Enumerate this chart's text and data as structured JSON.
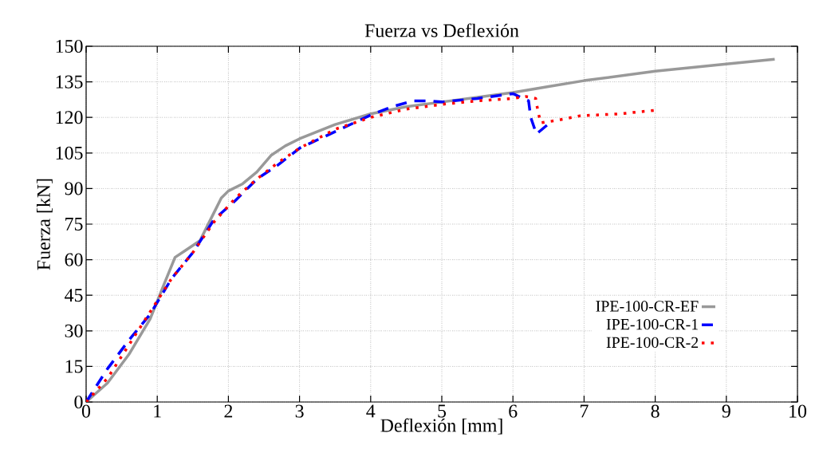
{
  "chart_data": {
    "type": "line",
    "title": "Fuerza vs Deflexión",
    "xlabel": "Deflexión [mm]",
    "ylabel": "Fuerza [kN]",
    "xlim": [
      0,
      10
    ],
    "ylim": [
      0,
      150
    ],
    "xticks": [
      0,
      1,
      2,
      3,
      4,
      5,
      6,
      7,
      8,
      9,
      10
    ],
    "yticks": [
      0,
      15,
      30,
      45,
      60,
      75,
      90,
      105,
      120,
      135,
      150
    ],
    "grid": true,
    "legend": "right",
    "marker": "none",
    "series": [
      {
        "name": "IPE-100-CR-EF",
        "color": "#999999",
        "line_style": "solid",
        "x": [
          0,
          0.3,
          0.6,
          0.9,
          1.1,
          1.25,
          1.4,
          1.6,
          1.8,
          1.9,
          2.0,
          2.2,
          2.4,
          2.6,
          2.8,
          3,
          3.5,
          4,
          4.5,
          5,
          5.5,
          6,
          6.5,
          7,
          7.5,
          8,
          8.5,
          9,
          9.68
        ],
        "values": [
          0,
          8,
          20,
          35,
          50,
          61,
          64,
          68,
          80,
          86,
          89,
          92,
          97,
          104,
          108,
          111,
          117,
          121.5,
          124.5,
          126.5,
          128.5,
          130.5,
          133,
          135.5,
          137.5,
          139.5,
          141,
          142.5,
          144.5
        ]
      },
      {
        "name": "IPE-100-CR-1",
        "color": "#0000ff",
        "line_style": "dashed",
        "x": [
          0,
          0.3,
          0.6,
          0.9,
          1.2,
          1.5,
          1.8,
          2.1,
          2.4,
          2.7,
          3,
          3.5,
          4,
          4.3,
          4.6,
          4.8,
          5,
          5.5,
          6,
          6.22,
          6.25,
          6.33,
          6.49
        ],
        "values": [
          0,
          14,
          26,
          37,
          52,
          63,
          77,
          85,
          94,
          100,
          107,
          114,
          121,
          124.5,
          127,
          127,
          126.5,
          128,
          130,
          127,
          120,
          113,
          117
        ]
      },
      {
        "name": "IPE-100-CR-2",
        "color": "#ff0000",
        "line_style": "dotted",
        "x": [
          0,
          0.3,
          0.6,
          0.9,
          1.2,
          1.5,
          1.8,
          2.1,
          2.4,
          2.7,
          3,
          3.5,
          4,
          4.5,
          5,
          5.5,
          6,
          6.18,
          6.32,
          6.35,
          6.39,
          6.61,
          6.95,
          7.5,
          8
        ],
        "values": [
          0,
          10,
          24,
          38,
          52,
          63,
          76,
          86,
          94,
          101,
          107,
          115,
          120,
          123.5,
          125.5,
          127,
          128,
          128.8,
          128,
          122.8,
          117.7,
          118.7,
          120.7,
          121.5,
          123
        ]
      }
    ]
  }
}
